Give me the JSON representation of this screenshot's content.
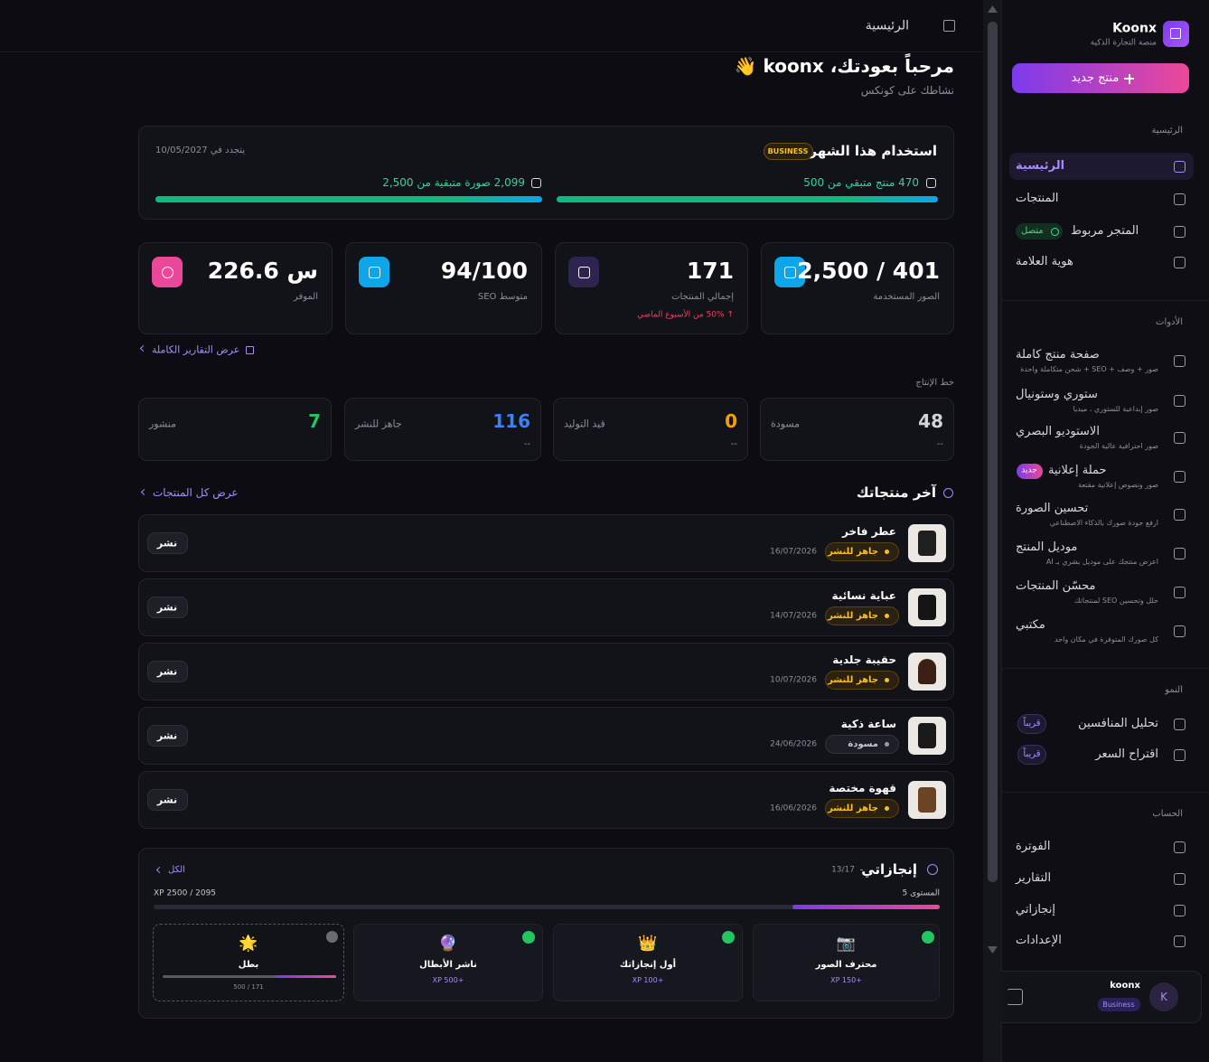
{
  "header": {
    "title": "الرئيسية"
  },
  "sidebar": {
    "brand": "Koonx",
    "tagline": "منصة التجارة الذكية",
    "new_product": "منتج جديد",
    "sections": [
      {
        "title": "الرئيسية",
        "items": [
          {
            "label": "الرئيسية"
          },
          {
            "label": "المنتجات"
          },
          {
            "label": "المتجر مربوط",
            "badge": "متصل"
          },
          {
            "label": "هوية العلامة"
          }
        ]
      },
      {
        "title": "الأدوات",
        "items": [
          {
            "label": "صفحة منتج كاملة",
            "desc": "صور + وصف + SEO + شحن متكاملة واحدة"
          },
          {
            "label": "ستوري وستونيال",
            "desc": "صور إبداعية للستوري ، ميديا"
          },
          {
            "label": "الاستوديو البصري",
            "desc": "صور احترافية عالية الجودة"
          },
          {
            "label": "حملة إعلانية",
            "badge": "جديد",
            "desc": "صور ونصوص إعلانية مقنعة"
          },
          {
            "label": "تحسين الصورة",
            "desc": "ارفع جودة صورك بالذكاء الاصطناعي"
          },
          {
            "label": "موديل المنتج",
            "desc": "اعرض منتجك على موديل بشري بـ AI"
          },
          {
            "label": "محسّن المنتجات",
            "desc": "حلل وتحسين SEO لمنتجاتك"
          },
          {
            "label": "مكتبي",
            "desc": "كل صورك المتوفرة في مكان واحد"
          }
        ]
      },
      {
        "title": "النمو",
        "items": [
          {
            "label": "تحليل المنافسين",
            "badge": "قريباً"
          },
          {
            "label": "اقتراح السعر",
            "badge": "قريباً"
          }
        ]
      },
      {
        "title": "الحساب",
        "items": [
          {
            "label": "الفوترة"
          },
          {
            "label": "التقارير"
          },
          {
            "label": "إنجازاتي"
          },
          {
            "label": "الإعدادات"
          }
        ]
      }
    ],
    "user": {
      "initial": "K",
      "name": "koonx",
      "plan": "Business"
    }
  },
  "welcome": {
    "title": "مرحباً بعودتك، koonx 👋",
    "subtitle": "نشاطك على كونكس"
  },
  "usage": {
    "title": "استخدام هذا الشهر",
    "plan": "BUSINESS",
    "renewal": "يتجدد في 10/05/2027",
    "products_remaining": "470 منتج متبقي من 500",
    "images_remaining": "2,099 صورة متبقية من 2,500"
  },
  "stats": [
    {
      "value": "2,500 / 401",
      "label": "الصور المستخدمة"
    },
    {
      "value": "171",
      "label": "إجمالي المنتجات",
      "change": "↑ 50% من الأسبوع الماضي"
    },
    {
      "value": "94/100",
      "label": "متوسط SEO"
    },
    {
      "value": "226.6 س",
      "label": "الموفر"
    }
  ],
  "reports_link": "عرض التقارير الكاملة",
  "pipeline": {
    "title": "خط الإنتاج",
    "stages": [
      {
        "value": "48",
        "label": "مسودة",
        "sub": "--"
      },
      {
        "value": "0",
        "label": "قيد التوليد",
        "sub": "--"
      },
      {
        "value": "116",
        "label": "جاهز للنشر",
        "sub": "--"
      },
      {
        "value": "7",
        "label": "منشور"
      }
    ]
  },
  "products": {
    "title": "آخر منتجاتك",
    "link": "عرض كل المنتجات",
    "items": [
      {
        "name": "عطر فاخر",
        "status": "جاهز للنشر",
        "date": "16/07/2026",
        "action": "نشر"
      },
      {
        "name": "عباية نسائية",
        "status": "جاهز للنشر",
        "date": "14/07/2026",
        "action": "نشر"
      },
      {
        "name": "حقيبة جلدية",
        "status": "جاهز للنشر",
        "date": "10/07/2026",
        "action": "نشر"
      },
      {
        "name": "ساعة ذكية",
        "status": "مسودة",
        "date": "24/06/2026",
        "action": "نشر"
      },
      {
        "name": "قهوة مختصة",
        "status": "جاهز للنشر",
        "date": "16/06/2026",
        "action": "نشر"
      }
    ]
  },
  "achievements": {
    "title": "إنجازاتي",
    "count": "13/17",
    "link": "الكل",
    "level": "المستوى 5",
    "xp": "XP 2500 / 2095",
    "badges": [
      {
        "icon": "📷",
        "name": "محترف الصور",
        "xp": "XP 150+"
      },
      {
        "icon": "👑",
        "name": "أول إنجازاتك",
        "xp": "XP 100+"
      },
      {
        "icon": "🔮",
        "name": "ناشر الأبطال",
        "xp": "XP 500+"
      },
      {
        "icon": "🌟",
        "name": "بطل",
        "progress": "500 / 171"
      }
    ]
  }
}
